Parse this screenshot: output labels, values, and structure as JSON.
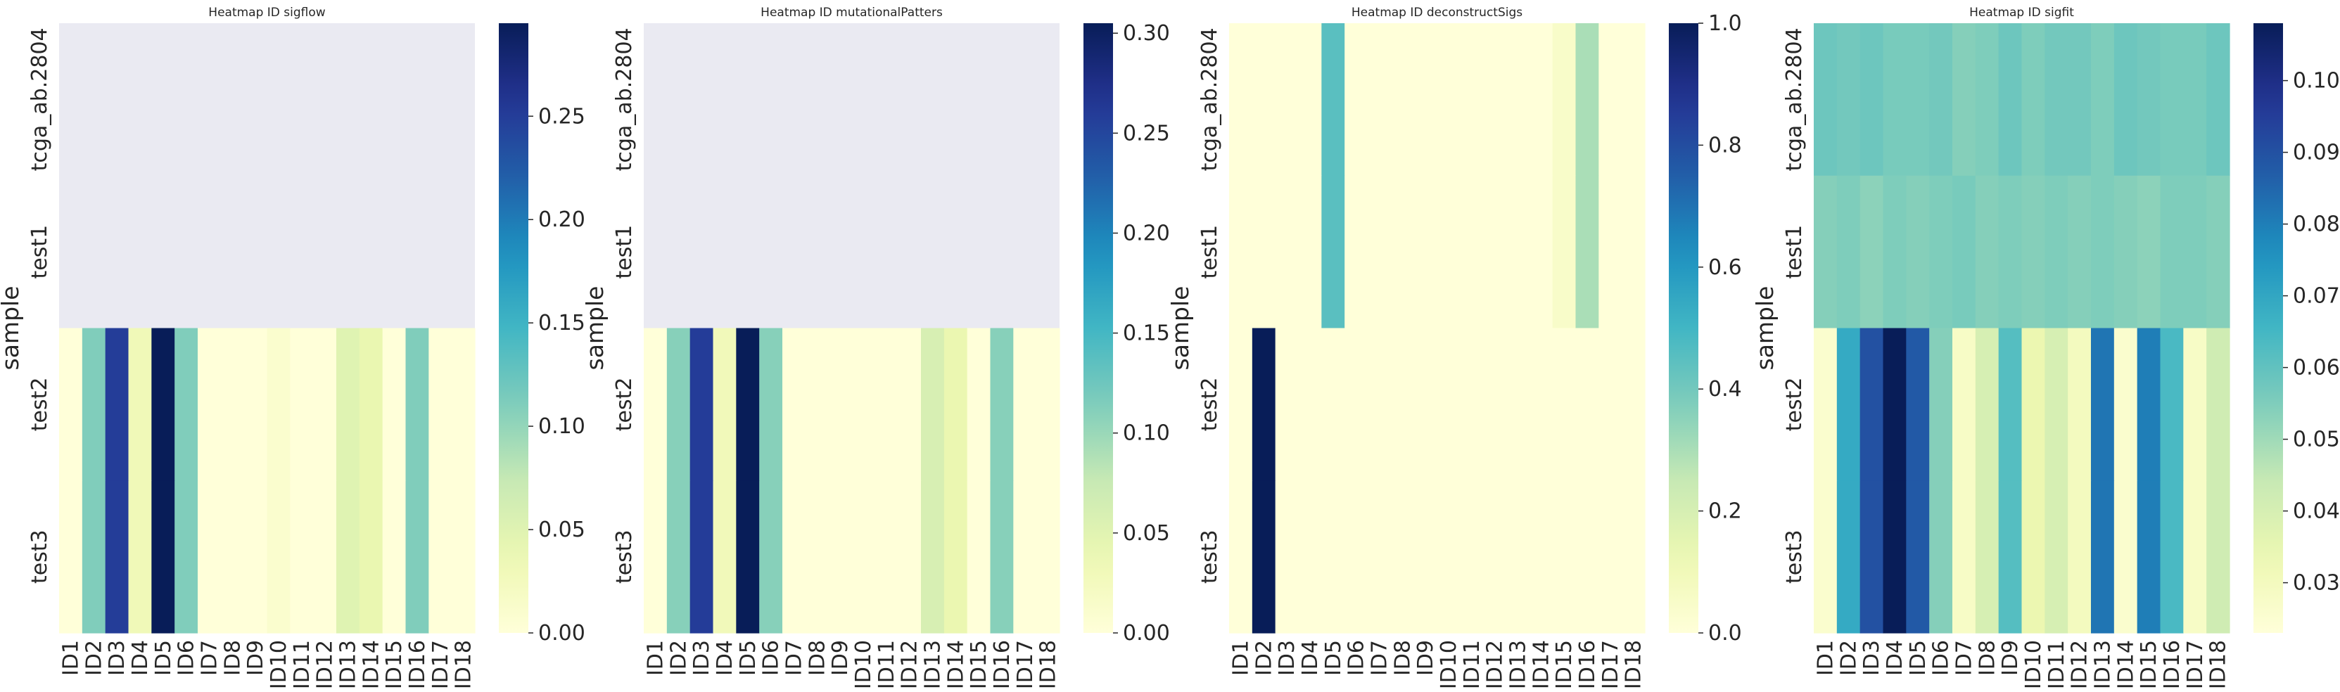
{
  "chart_data": [
    {
      "type": "heatmap",
      "title": "Heatmap ID sigflow",
      "ylabel": "sample",
      "rows": [
        "tcga_ab.2804",
        "test1",
        "test2",
        "test3"
      ],
      "columns": [
        "ID1",
        "ID2",
        "ID3",
        "ID4",
        "ID5",
        "ID6",
        "ID7",
        "ID8",
        "ID9",
        "ID10",
        "ID11",
        "ID12",
        "ID13",
        "ID14",
        "ID15",
        "ID16",
        "ID17",
        "ID18"
      ],
      "values": [
        [
          null,
          null,
          null,
          null,
          null,
          null,
          null,
          null,
          null,
          null,
          null,
          null,
          null,
          null,
          null,
          null,
          null,
          null
        ],
        [
          null,
          null,
          null,
          null,
          null,
          null,
          null,
          null,
          null,
          null,
          null,
          null,
          null,
          null,
          null,
          null,
          null,
          null
        ],
        [
          0.0,
          0.11,
          0.25,
          0.03,
          0.295,
          0.11,
          0.0,
          0.0,
          0.0,
          0.01,
          0.0,
          0.0,
          0.05,
          0.04,
          0.0,
          0.11,
          0.0,
          0.0
        ],
        [
          0.0,
          0.11,
          0.25,
          0.03,
          0.295,
          0.11,
          0.0,
          0.0,
          0.0,
          0.01,
          0.0,
          0.0,
          0.05,
          0.04,
          0.0,
          0.11,
          0.0,
          0.0
        ]
      ],
      "colorbar": {
        "min": 0.0,
        "max": 0.295,
        "ticks": [
          "0.00",
          "0.05",
          "0.10",
          "0.15",
          "0.20",
          "0.25"
        ],
        "tick_values": [
          0,
          0.05,
          0.1,
          0.15,
          0.2,
          0.25
        ]
      },
      "missing_color": "#eaeaf2",
      "colormap": "YlGnBu"
    },
    {
      "type": "heatmap",
      "title": "Heatmap ID mutationalPatters",
      "ylabel": "sample",
      "rows": [
        "tcga_ab.2804",
        "test1",
        "test2",
        "test3"
      ],
      "columns": [
        "ID1",
        "ID2",
        "ID3",
        "ID4",
        "ID5",
        "ID6",
        "ID7",
        "ID8",
        "ID9",
        "ID10",
        "ID11",
        "ID12",
        "ID13",
        "ID14",
        "ID15",
        "ID16",
        "ID17",
        "ID18"
      ],
      "values": [
        [
          null,
          null,
          null,
          null,
          null,
          null,
          null,
          null,
          null,
          null,
          null,
          null,
          null,
          null,
          null,
          null,
          null,
          null
        ],
        [
          null,
          null,
          null,
          null,
          null,
          null,
          null,
          null,
          null,
          null,
          null,
          null,
          null,
          null,
          null,
          null,
          null,
          null
        ],
        [
          0.0,
          0.11,
          0.26,
          0.03,
          0.305,
          0.11,
          0.0,
          0.0,
          0.0,
          0.0,
          0.0,
          0.0,
          0.06,
          0.04,
          0.0,
          0.11,
          0.0,
          0.0
        ],
        [
          0.0,
          0.11,
          0.26,
          0.03,
          0.305,
          0.11,
          0.0,
          0.0,
          0.0,
          0.0,
          0.0,
          0.0,
          0.06,
          0.04,
          0.0,
          0.11,
          0.0,
          0.0
        ]
      ],
      "colorbar": {
        "min": 0.0,
        "max": 0.305,
        "ticks": [
          "0.00",
          "0.05",
          "0.10",
          "0.15",
          "0.20",
          "0.25",
          "0.30"
        ],
        "tick_values": [
          0,
          0.05,
          0.1,
          0.15,
          0.2,
          0.25,
          0.3
        ]
      },
      "missing_color": "#eaeaf2",
      "colormap": "YlGnBu"
    },
    {
      "type": "heatmap",
      "title": "Heatmap ID deconstructSigs",
      "ylabel": "sample",
      "rows": [
        "tcga_ab.2804",
        "test1",
        "test2",
        "test3"
      ],
      "columns": [
        "ID1",
        "ID2",
        "ID3",
        "ID4",
        "ID5",
        "ID6",
        "ID7",
        "ID8",
        "ID9",
        "ID10",
        "ID11",
        "ID12",
        "ID13",
        "ID14",
        "ID15",
        "ID16",
        "ID17",
        "ID18"
      ],
      "values": [
        [
          0,
          0,
          0,
          0,
          0.45,
          0,
          0,
          0,
          0,
          0,
          0,
          0,
          0,
          0,
          0.05,
          0.3,
          0,
          0
        ],
        [
          0,
          0,
          0,
          0,
          0.45,
          0,
          0,
          0,
          0,
          0,
          0,
          0,
          0,
          0,
          0.05,
          0.3,
          0,
          0
        ],
        [
          0,
          1.0,
          0,
          0,
          0,
          0,
          0,
          0,
          0,
          0,
          0,
          0,
          0,
          0,
          0,
          0,
          0,
          0
        ],
        [
          0,
          1.0,
          0,
          0,
          0,
          0,
          0,
          0,
          0,
          0,
          0,
          0,
          0,
          0,
          0,
          0,
          0,
          0
        ]
      ],
      "colorbar": {
        "min": 0.0,
        "max": 1.0,
        "ticks": [
          "0.0",
          "0.2",
          "0.4",
          "0.6",
          "0.8",
          "1.0"
        ],
        "tick_values": [
          0,
          0.2,
          0.4,
          0.6,
          0.8,
          1.0
        ]
      },
      "missing_color": "#eaeaf2",
      "colormap": "YlGnBu"
    },
    {
      "type": "heatmap",
      "title": "Heatmap ID sigfit",
      "ylabel": "sample",
      "rows": [
        "tcga_ab.2804",
        "test1",
        "test2",
        "test3"
      ],
      "columns": [
        "ID1",
        "ID2",
        "ID3",
        "ID4",
        "ID5",
        "ID6",
        "ID7",
        "ID8",
        "ID9",
        "ID10",
        "ID11",
        "ID12",
        "ID13",
        "ID14",
        "ID15",
        "ID16",
        "ID17",
        "ID18"
      ],
      "values": [
        [
          0.058,
          0.057,
          0.058,
          0.056,
          0.056,
          0.057,
          0.054,
          0.055,
          0.058,
          0.055,
          0.057,
          0.057,
          0.055,
          0.058,
          0.057,
          0.056,
          0.056,
          0.058
        ],
        [
          0.054,
          0.055,
          0.053,
          0.055,
          0.054,
          0.055,
          0.056,
          0.054,
          0.055,
          0.054,
          0.055,
          0.054,
          0.055,
          0.054,
          0.053,
          0.055,
          0.055,
          0.054
        ],
        [
          0.026,
          0.069,
          0.09,
          0.108,
          0.088,
          0.054,
          0.028,
          0.04,
          0.062,
          0.034,
          0.04,
          0.03,
          0.082,
          0.026,
          0.08,
          0.064,
          0.028,
          0.042
        ],
        [
          0.026,
          0.069,
          0.09,
          0.108,
          0.088,
          0.054,
          0.028,
          0.04,
          0.062,
          0.034,
          0.04,
          0.03,
          0.082,
          0.026,
          0.08,
          0.064,
          0.028,
          0.042
        ]
      ],
      "colorbar": {
        "min": 0.023,
        "max": 0.108,
        "ticks": [
          "0.03",
          "0.04",
          "0.05",
          "0.06",
          "0.07",
          "0.08",
          "0.09",
          "0.10"
        ],
        "tick_values": [
          0.03,
          0.04,
          0.05,
          0.06,
          0.07,
          0.08,
          0.09,
          0.1
        ]
      },
      "missing_color": "#eaeaf2",
      "colormap": "YlGnBu"
    }
  ]
}
